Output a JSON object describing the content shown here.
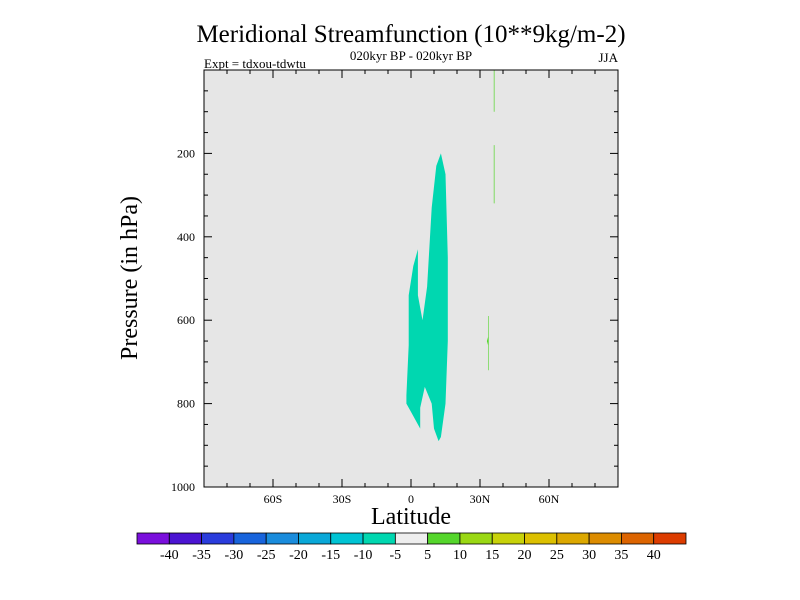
{
  "chart_data": {
    "type": "contour",
    "title": "Meridional Streamfunction (10**9kg/m-2)",
    "subtitle": "020kyr BP - 020kyr BP",
    "left_note": "Expt = tdxou-tdwtu",
    "right_note": "JJA",
    "xlabel": "Latitude",
    "ylabel": "Pressure (in hPa)",
    "xlim": [
      -90,
      90
    ],
    "ylim": [
      1000,
      0
    ],
    "x_ticks": [
      {
        "value": -60,
        "label": "60S"
      },
      {
        "value": -30,
        "label": "30S"
      },
      {
        "value": 0,
        "label": "0"
      },
      {
        "value": 30,
        "label": "30N"
      },
      {
        "value": 60,
        "label": "60N"
      }
    ],
    "y_ticks": [
      {
        "value": 200,
        "label": "200"
      },
      {
        "value": 400,
        "label": "400"
      },
      {
        "value": 600,
        "label": "600"
      },
      {
        "value": 800,
        "label": "800"
      },
      {
        "value": 1000,
        "label": "1000"
      }
    ],
    "background_color": "#e6e6e6",
    "regions": [
      {
        "level": "-10 to -5",
        "color": "#00d7b0",
        "points": [
          [
            13,
            880
          ],
          [
            15,
            800
          ],
          [
            16,
            650
          ],
          [
            16,
            450
          ],
          [
            15,
            250
          ],
          [
            13,
            200
          ],
          [
            11,
            230
          ],
          [
            9,
            330
          ],
          [
            7,
            520
          ],
          [
            5,
            600
          ],
          [
            3,
            540
          ],
          [
            3,
            430
          ],
          [
            1,
            470
          ],
          [
            -1,
            540
          ],
          [
            -1,
            660
          ],
          [
            -2,
            780
          ],
          [
            -2,
            800
          ],
          [
            0,
            820
          ],
          [
            4,
            860
          ],
          [
            4,
            810
          ],
          [
            6,
            760
          ],
          [
            9,
            800
          ],
          [
            10,
            860
          ],
          [
            12,
            890
          ]
        ]
      },
      {
        "level": "5 to 10",
        "color": "#55d62c",
        "points": [
          [
            36,
            0
          ],
          [
            36.3,
            0
          ],
          [
            36.3,
            100
          ],
          [
            36,
            100
          ]
        ]
      },
      {
        "level": "5 to 10",
        "color": "#55d62c",
        "points": [
          [
            36,
            180
          ],
          [
            36.3,
            180
          ],
          [
            36.3,
            320
          ],
          [
            36,
            320
          ]
        ]
      },
      {
        "level": "5 to 10",
        "color": "#55d62c",
        "points": [
          [
            33.5,
            590
          ],
          [
            33.8,
            590
          ],
          [
            33.8,
            720
          ],
          [
            33.5,
            720
          ],
          [
            33.5,
            660
          ],
          [
            33,
            650
          ],
          [
            33.5,
            640
          ]
        ]
      }
    ],
    "colorbar": {
      "colors": [
        "#7a0fdc",
        "#4b14d2",
        "#2a3cdc",
        "#1864dc",
        "#1a8cdc",
        "#0aa8d8",
        "#00c4d4",
        "#00d7b0",
        "#eeeeee",
        "#55d62c",
        "#9ad814",
        "#c8d20a",
        "#dcc000",
        "#dca800",
        "#dc8c00",
        "#dc6400",
        "#dc3c00"
      ],
      "labels": [
        "-40",
        "-35",
        "-30",
        "-25",
        "-20",
        "-15",
        "-10",
        "-5",
        "5",
        "10",
        "15",
        "20",
        "25",
        "30",
        "35",
        "40"
      ]
    }
  }
}
